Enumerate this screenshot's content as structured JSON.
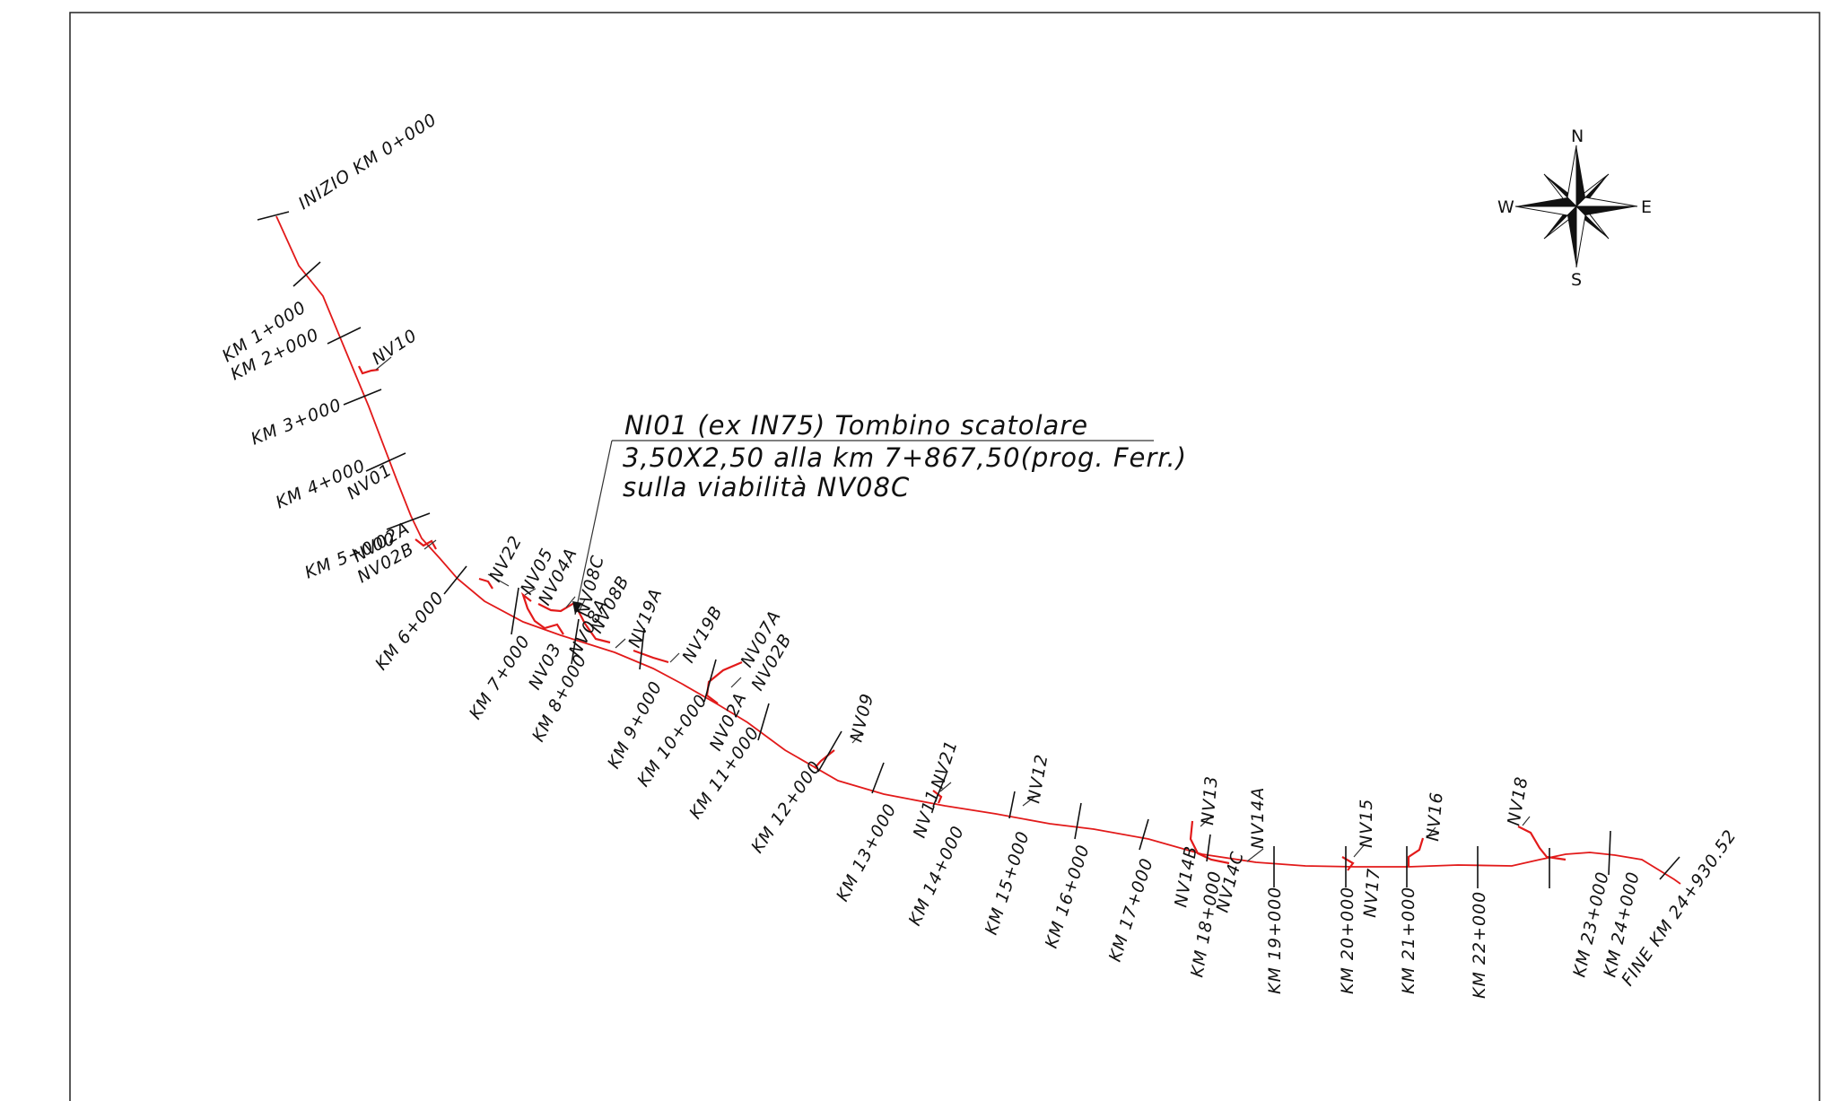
{
  "drawing": {
    "stations": [
      "INIZIO KM 0+000",
      "KM 1+000",
      "KM 2+000",
      "KM 3+000",
      "KM 4+000",
      "KM 5+000",
      "KM 6+000",
      "KM 7+000",
      "KM 8+000",
      "KM 9+000",
      "KM 10+000",
      "KM 11+000",
      "KM 12+000",
      "KM 13+000",
      "KM 14+000",
      "KM 15+000",
      "KM 16+000",
      "KM 17+000",
      "KM 18+000",
      "KM 19+000",
      "KM 20+000",
      "KM 21+000",
      "KM 22+000",
      "KM 23+000",
      "KM 24+000",
      "FINE KM 24+930.52"
    ],
    "viabilities": [
      "NV10",
      "NV01",
      "NV02A",
      "NV02B",
      "NV22",
      "NV05",
      "NV04A",
      "NV08C",
      "NV08B",
      "NV03",
      "NV08A",
      "NV19A",
      "NV19B",
      "NV07A",
      "NV02B",
      "NV02A",
      "NV09",
      "NV21",
      "NV11",
      "NV12",
      "NV13",
      "NV14A",
      "NV14B",
      "NV14C",
      "NV15",
      "NV17",
      "NV16",
      "NV18"
    ],
    "note": {
      "line1": "NI01 (ex IN75) Tombino scatolare",
      "line2": "3,50X2,50 alla km 7+867,50(prog. Ferr.)",
      "line3": "sulla viabilità NV08C"
    },
    "compass": {
      "north": "N",
      "south": "S",
      "east": "E",
      "west": "W"
    },
    "colors": {
      "alignment": "#e21a1a",
      "linework": "#111111",
      "frame": "#222222"
    }
  }
}
